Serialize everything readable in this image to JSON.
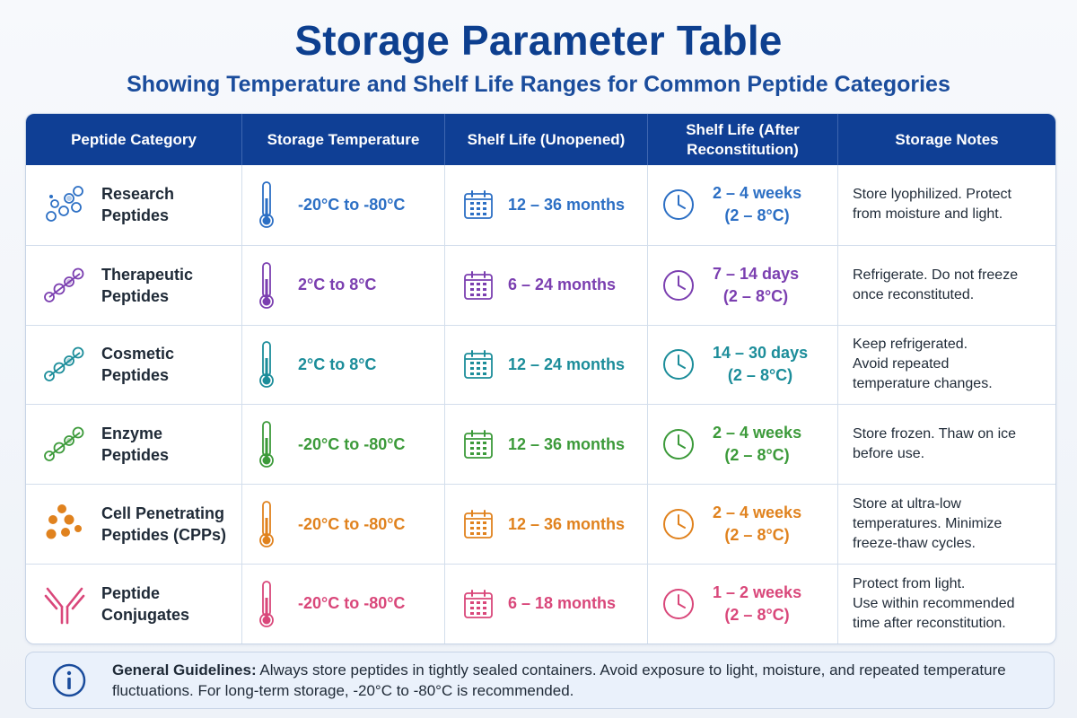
{
  "title": "Storage Parameter Table",
  "subtitle": "Showing Temperature and Shelf Life Ranges for Common Peptide Categories",
  "headers": {
    "category": "Peptide Category",
    "temperature": "Storage Temperature",
    "shelf_unopened": "Shelf Life (Unopened)",
    "shelf_recon_line1": "Shelf Life (After",
    "shelf_recon_line2": "Reconstitution)",
    "notes": "Storage Notes"
  },
  "rows": [
    {
      "category_line1": "Research",
      "category_line2": "Peptides",
      "icon": "molecule-cluster-icon",
      "color": "#2c6fc4",
      "temperature": "-20°C to -80°C",
      "shelf_unopened": "12 – 36 months",
      "recon_line1": "2 – 4 weeks",
      "recon_line2": "(2 – 8°C)",
      "notes_line1": "Store lyophilized. Protect",
      "notes_line2": "from moisture and light.",
      "notes_line3": ""
    },
    {
      "category_line1": "Therapeutic",
      "category_line2": "Peptides",
      "icon": "molecule-chain-icon",
      "color": "#7b3fb0",
      "temperature": "2°C to 8°C",
      "shelf_unopened": "6 – 24 months",
      "recon_line1": "7 – 14 days",
      "recon_line2": "(2 – 8°C)",
      "notes_line1": "Refrigerate. Do not freeze",
      "notes_line2": "once reconstituted.",
      "notes_line3": ""
    },
    {
      "category_line1": "Cosmetic",
      "category_line2": "Peptides",
      "icon": "molecule-chain-icon",
      "color": "#1c8d9a",
      "temperature": "2°C to 8°C",
      "shelf_unopened": "12 – 24 months",
      "recon_line1": "14 – 30 days",
      "recon_line2": "(2 – 8°C)",
      "notes_line1": "Keep refrigerated.",
      "notes_line2": "Avoid repeated",
      "notes_line3": "temperature changes."
    },
    {
      "category_line1": "Enzyme",
      "category_line2": "Peptides",
      "icon": "molecule-chain-icon",
      "color": "#3c9a3a",
      "temperature": "-20°C to -80°C",
      "shelf_unopened": "12 – 36 months",
      "recon_line1": "2 – 4 weeks",
      "recon_line2": "(2 – 8°C)",
      "notes_line1": "Store frozen. Thaw on ice",
      "notes_line2": "before use.",
      "notes_line3": ""
    },
    {
      "category_line1": "Cell Penetrating",
      "category_line2": "Peptides (CPPs)",
      "icon": "dots-cluster-icon",
      "color": "#e0821e",
      "temperature": "-20°C to -80°C",
      "shelf_unopened": "12 – 36 months",
      "recon_line1": "2 – 4 weeks",
      "recon_line2": "(2 – 8°C)",
      "notes_line1": "Store at ultra-low",
      "notes_line2": "temperatures. Minimize",
      "notes_line3": "freeze-thaw cycles."
    },
    {
      "category_line1": "Peptide",
      "category_line2": "Conjugates",
      "icon": "antibody-icon",
      "color": "#d9477a",
      "temperature": "-20°C to -80°C",
      "shelf_unopened": "6 – 18 months",
      "recon_line1": "1 – 2 weeks",
      "recon_line2": "(2 – 8°C)",
      "notes_line1": "Protect from light.",
      "notes_line2": "Use within recommended",
      "notes_line3": "time after reconstitution."
    }
  ],
  "guidelines": {
    "label": "General Guidelines:",
    "text": "Always store peptides in tightly sealed containers. Avoid exposure to light, moisture, and repeated temperature fluctuations. For long-term storage, -20°C to -80°C is recommended.",
    "icon": "info-icon",
    "color": "#1a4c9c"
  }
}
